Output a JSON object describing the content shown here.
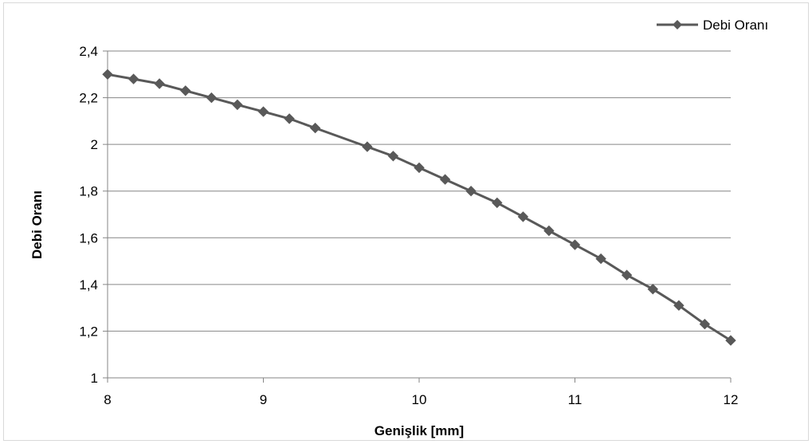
{
  "chart_data": {
    "type": "line",
    "title": "",
    "xlabel": "Genişlik [mm]",
    "ylabel": "Debi Oranı",
    "xlim": [
      8,
      12
    ],
    "ylim": [
      1,
      2.4
    ],
    "x_ticks": [
      {
        "value": 8,
        "label": "8"
      },
      {
        "value": 9,
        "label": "9"
      },
      {
        "value": 10,
        "label": "10"
      },
      {
        "value": 11,
        "label": "11"
      },
      {
        "value": 12,
        "label": "12"
      }
    ],
    "y_ticks": [
      {
        "value": 1,
        "label": "1"
      },
      {
        "value": 1.2,
        "label": "1,2"
      },
      {
        "value": 1.4,
        "label": "1,4"
      },
      {
        "value": 1.6,
        "label": "1,6"
      },
      {
        "value": 1.8,
        "label": "1,8"
      },
      {
        "value": 2,
        "label": "2"
      },
      {
        "value": 2.2,
        "label": "2,2"
      },
      {
        "value": 2.4,
        "label": "2,4"
      }
    ],
    "grid": {
      "horizontal": true,
      "vertical": false
    },
    "legend": {
      "position": "top-right"
    },
    "series": [
      {
        "name": "Debi Oranı",
        "color": "#595959",
        "marker": "diamond",
        "x": [
          8,
          8.167,
          8.333,
          8.5,
          8.667,
          8.833,
          9,
          9.167,
          9.333,
          9.667,
          9.833,
          10,
          10.167,
          10.333,
          10.5,
          10.667,
          10.833,
          11,
          11.167,
          11.333,
          11.5,
          11.667,
          11.833,
          12
        ],
        "y": [
          2.3,
          2.28,
          2.26,
          2.23,
          2.2,
          2.17,
          2.14,
          2.11,
          2.07,
          1.99,
          1.95,
          1.9,
          1.85,
          1.8,
          1.75,
          1.69,
          1.63,
          1.57,
          1.51,
          1.44,
          1.38,
          1.31,
          1.23,
          1.16
        ]
      }
    ]
  }
}
